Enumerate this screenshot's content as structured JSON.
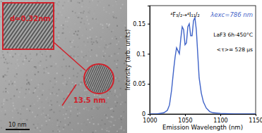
{
  "chart_data": {
    "type": "line",
    "x_label": "Emission Wavelength (nm)",
    "y_label": "Intensity (arb. units)",
    "annotations": [
      "⁴F₃/₂→⁴I₁₁/₂",
      "λexc=786 nm",
      "LaF3 6h-450°C",
      "<τ>= 528 µs"
    ],
    "x": [
      1000,
      1010,
      1020,
      1025,
      1028,
      1031,
      1034,
      1036,
      1038,
      1040,
      1042,
      1044,
      1046,
      1048,
      1050,
      1052,
      1054,
      1056,
      1058,
      1060,
      1062,
      1064,
      1066,
      1068,
      1070,
      1073,
      1076,
      1080,
      1085,
      1090,
      1100,
      1120,
      1150
    ],
    "values": [
      0,
      0,
      0.002,
      0.006,
      0.015,
      0.04,
      0.075,
      0.095,
      0.11,
      0.105,
      0.1,
      0.125,
      0.145,
      0.14,
      0.115,
      0.118,
      0.145,
      0.15,
      0.13,
      0.13,
      0.155,
      0.16,
      0.14,
      0.1,
      0.06,
      0.035,
      0.02,
      0.01,
      0.004,
      0.002,
      0.001,
      0,
      0
    ],
    "color": "#3f63c8",
    "xlim": [
      1000,
      1150
    ],
    "xticks": [
      1000,
      1050,
      1100,
      1150
    ],
    "ylim": [
      0,
      0.18
    ],
    "yticks": [
      0,
      0.05,
      0.1,
      0.15
    ]
  },
  "micrograph": {
    "inset_label": "d=0.32nm",
    "size_label": "13.5 nm",
    "scale_bar": "10 nm"
  }
}
